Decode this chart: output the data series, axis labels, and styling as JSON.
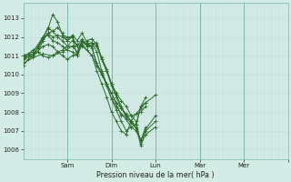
{
  "background_color": "#d4ece6",
  "grid_color_minor": "#c2ddd8",
  "grid_color_major": "#aaccc6",
  "line_color": "#2d6b2d",
  "xlabel_text": "Pression niveau de la mer( hPa )",
  "ylim": [
    1005.5,
    1013.8
  ],
  "yticks": [
    1006,
    1007,
    1008,
    1009,
    1010,
    1011,
    1012,
    1013
  ],
  "xlim": [
    0,
    108
  ],
  "x_day_ticks": [
    18,
    36,
    54,
    72,
    90,
    108
  ],
  "x_day_labels": [
    "Sam",
    "Dim",
    "Lun",
    "Mar",
    "Mer",
    ""
  ],
  "x_separator_positions": [
    18,
    36,
    54,
    72,
    90
  ],
  "series": [
    [
      0,
      1010.8,
      2,
      1011.0,
      4,
      1011.1,
      6,
      1011.2,
      8,
      1011.8,
      10,
      1012.2,
      12,
      1012.0,
      14,
      1012.1,
      16,
      1012.0,
      18,
      1011.8,
      20,
      1012.0,
      22,
      1011.5,
      24,
      1011.9,
      26,
      1011.5,
      28,
      1011.5,
      30,
      1010.5,
      32,
      1010.0,
      34,
      1009.5,
      36,
      1009.0,
      38,
      1008.5,
      40,
      1008.2,
      42,
      1007.9,
      44,
      1007.5,
      46,
      1007.3,
      48,
      1008.3,
      50,
      1008.8
    ],
    [
      0,
      1011.0,
      2,
      1011.1,
      4,
      1011.3,
      6,
      1011.5,
      8,
      1011.9,
      10,
      1012.5,
      12,
      1012.3,
      14,
      1012.5,
      16,
      1012.2,
      18,
      1011.8,
      20,
      1012.1,
      22,
      1011.8,
      24,
      1012.2,
      26,
      1011.7,
      28,
      1011.4,
      30,
      1010.6,
      32,
      1010.1,
      34,
      1009.4,
      36,
      1008.7,
      38,
      1008.3,
      40,
      1007.9,
      42,
      1007.6,
      44,
      1007.2,
      46,
      1007.0,
      48,
      1006.5,
      50,
      1007.2
    ],
    [
      0,
      1011.0,
      4,
      1011.2,
      8,
      1012.0,
      10,
      1012.4,
      12,
      1013.2,
      14,
      1012.8,
      16,
      1012.1,
      18,
      1012.0,
      20,
      1012.0,
      22,
      1011.0,
      24,
      1011.8,
      26,
      1011.5,
      28,
      1011.6,
      30,
      1011.7,
      32,
      1010.8,
      34,
      1010.2,
      36,
      1009.5,
      38,
      1009.0,
      40,
      1008.6,
      42,
      1008.3,
      44,
      1007.8,
      46,
      1007.5,
      48,
      1006.3,
      50,
      1006.8,
      54,
      1007.2
    ],
    [
      0,
      1010.9,
      4,
      1011.1,
      8,
      1011.8,
      10,
      1012.2,
      12,
      1012.3,
      14,
      1012.0,
      16,
      1011.8,
      18,
      1011.5,
      20,
      1011.5,
      22,
      1011.2,
      24,
      1011.8,
      26,
      1011.6,
      28,
      1011.7,
      30,
      1011.5,
      32,
      1010.8,
      34,
      1010.2,
      36,
      1009.4,
      38,
      1008.8,
      40,
      1008.2,
      42,
      1007.8,
      44,
      1007.5,
      46,
      1007.1,
      48,
      1006.5,
      50,
      1007.0,
      54,
      1007.5
    ],
    [
      0,
      1010.8,
      4,
      1011.0,
      6,
      1011.4,
      8,
      1012.0,
      10,
      1012.1,
      12,
      1011.8,
      14,
      1011.7,
      16,
      1011.5,
      18,
      1011.3,
      20,
      1011.2,
      22,
      1011.0,
      24,
      1011.6,
      26,
      1011.8,
      28,
      1011.9,
      30,
      1011.6,
      32,
      1010.9,
      34,
      1010.3,
      36,
      1009.5,
      38,
      1008.9,
      40,
      1008.3,
      42,
      1007.7,
      44,
      1007.4,
      46,
      1007.2,
      48,
      1006.2,
      50,
      1007.1,
      54,
      1007.8
    ],
    [
      0,
      1011.0,
      4,
      1011.0,
      8,
      1011.5,
      10,
      1011.6,
      12,
      1011.5,
      14,
      1011.2,
      16,
      1011.0,
      18,
      1010.8,
      20,
      1011.0,
      22,
      1011.1,
      24,
      1011.8,
      26,
      1011.6,
      28,
      1011.7,
      30,
      1011.2,
      32,
      1010.2,
      34,
      1009.5,
      36,
      1008.7,
      38,
      1008.1,
      40,
      1007.5,
      42,
      1007.0,
      44,
      1007.2,
      46,
      1007.3,
      48,
      1008.3,
      50,
      1008.5,
      54,
      1008.9
    ],
    [
      0,
      1010.5,
      2,
      1010.8,
      4,
      1011.0,
      6,
      1011.2,
      8,
      1011.0,
      10,
      1010.9,
      12,
      1011.0,
      14,
      1011.2,
      16,
      1011.3,
      18,
      1011.5,
      20,
      1011.8,
      22,
      1011.6,
      24,
      1011.5,
      26,
      1011.3,
      28,
      1011.0,
      30,
      1010.2,
      32,
      1009.5,
      34,
      1008.8,
      36,
      1008.0,
      38,
      1007.5,
      40,
      1007.0,
      42,
      1006.8,
      44,
      1007.5,
      46,
      1007.9,
      48,
      1008.2,
      50,
      1008.5
    ],
    [
      0,
      1010.6,
      4,
      1010.9,
      8,
      1011.1,
      12,
      1011.0,
      16,
      1011.2,
      20,
      1011.5,
      24,
      1011.6,
      28,
      1011.0,
      32,
      1010.0,
      36,
      1009.0,
      40,
      1007.8,
      44,
      1007.8,
      48,
      1008.0,
      50,
      1008.3
    ]
  ]
}
